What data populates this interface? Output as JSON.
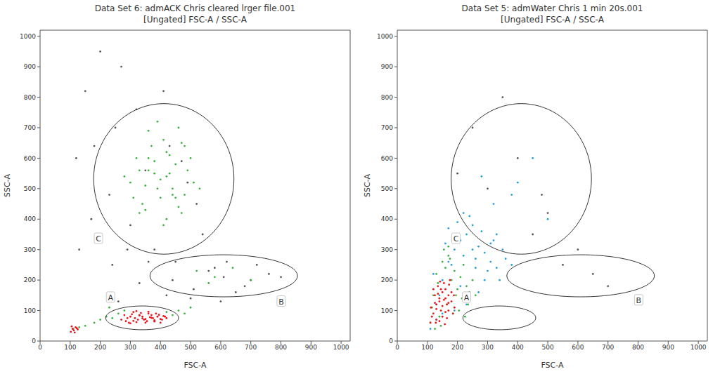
{
  "chart_data": [
    {
      "type": "scatter",
      "title": "Data Set 6: admACK Chris cleared lrger file.001",
      "subtitle": "[Ungated] FSC-A / SSC-A",
      "x_label": "FSC-A",
      "y_label": "SSC-A",
      "xlim": [
        0,
        1030
      ],
      "ylim": [
        0,
        1020
      ],
      "xticks": [
        0,
        100,
        200,
        300,
        400,
        500,
        600,
        700,
        800,
        900,
        1000
      ],
      "yticks": [
        0,
        100,
        200,
        300,
        400,
        500,
        600,
        700,
        800,
        900,
        1000
      ],
      "series": [
        {
          "color": "#555555",
          "x": [
            180,
            250,
            320,
            410,
            470,
            520,
            230,
            300,
            380,
            450,
            560,
            610,
            700,
            150,
            270,
            350,
            430,
            490,
            540,
            620,
            680,
            760,
            200,
            290,
            360,
            440,
            510,
            580,
            650,
            120,
            170,
            240,
            330,
            420,
            500,
            600,
            720,
            800,
            130,
            260
          ],
          "values": [
            640,
            700,
            760,
            820,
            590,
            450,
            480,
            380,
            300,
            260,
            230,
            210,
            200,
            820,
            900,
            560,
            640,
            520,
            350,
            260,
            180,
            220,
            950,
            300,
            260,
            200,
            170,
            240,
            160,
            600,
            400,
            250,
            190,
            150,
            140,
            130,
            250,
            210,
            300,
            130
          ]
        },
        {
          "color": "#3cb043",
          "x": [
            300,
            330,
            360,
            390,
            420,
            450,
            480,
            510,
            340,
            370,
            400,
            430,
            460,
            490,
            320,
            350,
            380,
            410,
            440,
            470,
            500,
            280,
            310,
            360,
            420,
            470,
            530,
            390,
            410,
            430,
            350,
            450,
            380,
            420,
            400,
            440,
            360,
            480,
            330,
            460,
            180,
            200,
            220,
            240,
            260,
            280,
            420,
            440,
            460,
            480,
            500,
            150,
            130,
            110,
            230,
            520,
            580,
            640,
            700,
            560
          ],
          "values": [
            520,
            560,
            600,
            500,
            540,
            580,
            480,
            520,
            450,
            640,
            470,
            610,
            440,
            560,
            600,
            430,
            550,
            660,
            500,
            420,
            600,
            540,
            470,
            690,
            400,
            650,
            500,
            720,
            380,
            550,
            510,
            470,
            590,
            620,
            530,
            480,
            560,
            640,
            420,
            700,
            60,
            70,
            80,
            75,
            90,
            100,
            95,
            85,
            100,
            90,
            110,
            50,
            45,
            40,
            110,
            230,
            210,
            240,
            200,
            190
          ]
        },
        {
          "color": "#e8141b",
          "x": [
            270,
            285,
            300,
            315,
            330,
            345,
            360,
            375,
            390,
            405,
            420,
            280,
            295,
            310,
            325,
            340,
            355,
            370,
            385,
            400,
            415,
            290,
            305,
            320,
            335,
            350,
            365,
            380,
            395,
            410,
            300,
            320,
            340,
            360,
            380,
            400,
            330,
            350,
            370,
            310,
            102,
            108,
            112,
            118,
            125,
            105,
            115,
            122
          ],
          "values": [
            70,
            65,
            80,
            75,
            85,
            70,
            90,
            75,
            80,
            70,
            75,
            85,
            60,
            95,
            70,
            80,
            65,
            85,
            90,
            60,
            80,
            75,
            88,
            62,
            92,
            72,
            78,
            68,
            86,
            82,
            58,
            98,
            74,
            96,
            64,
            72,
            84,
            60,
            76,
            66,
            30,
            40,
            35,
            45,
            38,
            48,
            28,
            42
          ]
        }
      ],
      "gates": [
        {
          "label": "A",
          "cx": 339,
          "cy": 76,
          "rx": 121,
          "ry": 39,
          "label_x": 234,
          "label_y": 143
        },
        {
          "label": "B",
          "cx": 610,
          "cy": 214,
          "rx": 245,
          "ry": 69,
          "label_x": 801,
          "label_y": 130
        },
        {
          "label": "C",
          "cx": 411,
          "cy": 532,
          "rx": 233,
          "ry": 247,
          "label_x": 194,
          "label_y": 336
        }
      ]
    },
    {
      "type": "scatter",
      "title": "Data Set 5: admWater Chris 1 min 20s.001",
      "subtitle": "[Ungated] FSC-A / SSC-A",
      "x_label": "FSC-A",
      "y_label": "SSC-A",
      "xlim": [
        0,
        1030
      ],
      "ylim": [
        0,
        1020
      ],
      "xticks": [
        0,
        100,
        200,
        300,
        400,
        500,
        600,
        700,
        800,
        900,
        1000
      ],
      "yticks": [
        0,
        100,
        200,
        300,
        400,
        500,
        600,
        700,
        800,
        900,
        1000
      ],
      "series": [
        {
          "color": "#555555",
          "x": [
            300,
            400,
            500,
            600,
            250,
            450,
            350,
            550,
            200,
            650,
            700,
            480
          ],
          "values": [
            500,
            600,
            420,
            300,
            700,
            350,
            800,
            250,
            550,
            220,
            180,
            480
          ]
        },
        {
          "color": "#2a9fd6",
          "x": [
            110,
            130,
            150,
            170,
            190,
            210,
            230,
            250,
            270,
            290,
            310,
            330,
            350,
            120,
            160,
            200,
            240,
            280,
            320,
            360,
            140,
            180,
            220,
            260,
            300,
            340,
            380,
            150,
            210,
            270,
            230,
            190,
            250,
            310,
            170,
            130,
            290,
            220,
            260,
            330,
            320,
            400,
            450,
            380,
            500,
            280
          ],
          "values": [
            40,
            120,
            200,
            260,
            300,
            330,
            350,
            380,
            310,
            290,
            260,
            240,
            300,
            220,
            320,
            390,
            410,
            360,
            330,
            270,
            150,
            250,
            280,
            240,
            230,
            200,
            250,
            90,
            180,
            160,
            120,
            100,
            300,
            320,
            370,
            70,
            200,
            420,
            270,
            350,
            450,
            520,
            600,
            480,
            400,
            540
          ]
        },
        {
          "color": "#3cb043",
          "x": [
            110,
            120,
            130,
            140,
            150,
            160,
            170,
            180,
            190,
            200,
            210,
            220,
            230,
            240,
            115,
            135,
            155,
            175,
            195,
            215,
            235,
            125,
            145,
            165,
            185,
            205,
            225,
            250,
            260,
            170
          ],
          "values": [
            60,
            150,
            220,
            80,
            260,
            240,
            280,
            200,
            230,
            170,
            210,
            250,
            180,
            160,
            110,
            190,
            300,
            270,
            150,
            140,
            120,
            40,
            50,
            120,
            90,
            100,
            80,
            200,
            150,
            310
          ]
        },
        {
          "color": "#e8141b",
          "x": [
            110,
            120,
            130,
            140,
            150,
            160,
            170,
            180,
            190,
            115,
            125,
            135,
            145,
            155,
            165,
            175,
            185,
            120,
            130,
            140,
            150,
            160,
            170,
            180,
            112,
            128,
            142,
            158,
            172,
            188,
            135,
            150,
            165,
            145,
            125,
            160,
            140,
            155,
            130,
            170
          ],
          "values": [
            60,
            90,
            120,
            140,
            160,
            170,
            150,
            130,
            110,
            80,
            150,
            180,
            100,
            190,
            120,
            200,
            90,
            170,
            70,
            130,
            80,
            140,
            100,
            160,
            110,
            60,
            195,
            55,
            185,
            150,
            155,
            115,
            75,
            170,
            125,
            95,
            65,
            135,
            105,
            125
          ]
        }
      ],
      "gates": [
        {
          "label": "A",
          "cx": 339,
          "cy": 76,
          "rx": 121,
          "ry": 39,
          "label_x": 230,
          "label_y": 143
        },
        {
          "label": "B",
          "cx": 609,
          "cy": 214,
          "rx": 245,
          "ry": 69,
          "label_x": 802,
          "label_y": 134
        },
        {
          "label": "C",
          "cx": 412,
          "cy": 532,
          "rx": 233,
          "ry": 247,
          "label_x": 195,
          "label_y": 336
        }
      ]
    }
  ]
}
